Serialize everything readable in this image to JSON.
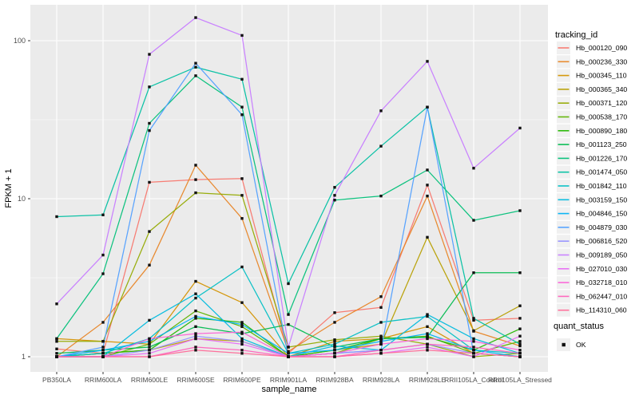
{
  "figure": {
    "panel_bg": "#EBEBEB",
    "grid_color": "#FFFFFF",
    "tick_text_color": "#4D4D4D",
    "title_text_color": "#000000",
    "point_color": "#111111"
  },
  "axes": {
    "x_title": "sample_name",
    "y_title": "FPKM + 1",
    "y_scale": "log10",
    "y_major_ticks": [
      {
        "label": "1",
        "value": 1
      },
      {
        "label": "10",
        "value": 10
      },
      {
        "label": "100",
        "value": 100
      }
    ],
    "y_minor_values": [
      3.1623,
      31.623
    ]
  },
  "legend": {
    "tracking_title": "tracking_id",
    "quant_title": "quant_status",
    "quant_items": [
      {
        "label": "OK",
        "marker": "black-square"
      }
    ]
  },
  "chart_data": {
    "type": "line",
    "title": "",
    "xlabel": "sample_name",
    "ylabel": "FPKM + 1",
    "y_scale": "log10",
    "ylim": [
      0.8,
      170
    ],
    "grid": true,
    "legend_position": "right",
    "point_marker": "black square (quant_status = OK)",
    "categories": [
      "PB350LA",
      "RRIM600LA",
      "RRIM600LE",
      "RRIM600SE",
      "RRIM600PE",
      "RRIM901LA",
      "RRIM928BA",
      "RRIM928LA",
      "RRIM928LE",
      "RRII105LA_Control",
      "RRII105LA_Stressed"
    ],
    "series": [
      {
        "name": "Hb_000120_090",
        "color": "#F8766D",
        "values": [
          1.12,
          1.05,
          12.7,
          13.2,
          13.4,
          1.05,
          1.9,
          2.05,
          12.2,
          1.7,
          1.75
        ]
      },
      {
        "name": "Hb_000236_330",
        "color": "#E88526",
        "values": [
          1.0,
          1.65,
          3.8,
          16.3,
          7.5,
          1.08,
          1.65,
          2.4,
          10.4,
          1.45,
          1.17
        ]
      },
      {
        "name": "Hb_000345_110",
        "color": "#D39200",
        "values": [
          1.3,
          1.25,
          1.2,
          3.0,
          2.2,
          1.0,
          1.25,
          1.3,
          1.55,
          1.05,
          1.0
        ]
      },
      {
        "name": "Hb_000365_340",
        "color": "#B79F00",
        "values": [
          1.0,
          1.05,
          1.1,
          1.3,
          1.25,
          1.0,
          1.1,
          1.2,
          5.7,
          1.46,
          2.1
        ]
      },
      {
        "name": "Hb_000371_120",
        "color": "#93AA00",
        "values": [
          1.25,
          1.25,
          6.2,
          10.9,
          10.5,
          1.15,
          1.28,
          1.35,
          1.2,
          1.0,
          1.05
        ]
      },
      {
        "name": "Hb_000538_170",
        "color": "#5EB300",
        "values": [
          1.0,
          1.0,
          1.2,
          1.95,
          1.55,
          1.0,
          1.05,
          1.3,
          1.35,
          1.05,
          1.25
        ]
      },
      {
        "name": "Hb_000890_180",
        "color": "#24B700",
        "values": [
          1.0,
          1.05,
          1.1,
          1.75,
          1.65,
          1.0,
          1.1,
          1.3,
          1.33,
          1.1,
          1.5
        ]
      },
      {
        "name": "Hb_001123_250",
        "color": "#00BB4E",
        "values": [
          1.05,
          1.1,
          1.15,
          1.55,
          1.4,
          1.6,
          1.15,
          1.3,
          1.33,
          3.4,
          3.4
        ]
      },
      {
        "name": "Hb_001226_170",
        "color": "#00C078",
        "values": [
          1.3,
          3.35,
          30.0,
          60.0,
          38.0,
          1.85,
          9.8,
          10.4,
          15.2,
          7.3,
          8.4
        ]
      },
      {
        "name": "Hb_001474_050",
        "color": "#00C0A2",
        "values": [
          7.7,
          7.9,
          51.0,
          68.0,
          57.0,
          2.9,
          11.8,
          21.5,
          38.0,
          1.75,
          1.2
        ]
      },
      {
        "name": "Hb_001842_110",
        "color": "#00BFC4",
        "values": [
          1.0,
          1.05,
          1.3,
          2.35,
          3.7,
          1.05,
          1.2,
          1.65,
          1.8,
          1.1,
          1.05
        ]
      },
      {
        "name": "Hb_003159_150",
        "color": "#00BADE",
        "values": [
          1.0,
          1.0,
          1.7,
          2.5,
          1.3,
          1.0,
          1.17,
          1.1,
          1.85,
          1.3,
          1.05
        ]
      },
      {
        "name": "Hb_004846_150",
        "color": "#00B2F3",
        "values": [
          1.0,
          1.1,
          1.25,
          1.8,
          1.6,
          1.05,
          1.1,
          1.25,
          1.4,
          1.1,
          1.0
        ]
      },
      {
        "name": "Hb_004879_030",
        "color": "#509FFF",
        "values": [
          1.0,
          1.15,
          27.0,
          72.0,
          34.0,
          1.0,
          1.05,
          1.1,
          38.0,
          1.05,
          1.0
        ]
      },
      {
        "name": "Hb_006816_520",
        "color": "#9590FF",
        "values": [
          1.0,
          1.0,
          1.1,
          1.35,
          1.25,
          1.0,
          1.05,
          1.1,
          1.2,
          1.05,
          1.0
        ]
      },
      {
        "name": "Hb_009189_050",
        "color": "#C77CFF",
        "values": [
          2.16,
          4.4,
          82.0,
          140.0,
          108.0,
          1.15,
          10.5,
          36.0,
          74.0,
          15.6,
          28.0
        ]
      },
      {
        "name": "Hb_027010_030",
        "color": "#E76BF3",
        "values": [
          1.0,
          1.0,
          1.05,
          1.3,
          1.2,
          1.0,
          1.0,
          1.05,
          1.15,
          1.0,
          1.35
        ]
      },
      {
        "name": "Hb_032718_010",
        "color": "#FB61D7",
        "values": [
          1.0,
          1.0,
          1.3,
          1.4,
          1.43,
          1.0,
          1.05,
          1.2,
          1.3,
          1.25,
          1.1
        ]
      },
      {
        "name": "Hb_062447_010",
        "color": "#FF62BC",
        "values": [
          1.0,
          1.0,
          1.0,
          1.15,
          1.1,
          1.0,
          1.0,
          1.1,
          1.2,
          1.15,
          1.05
        ]
      },
      {
        "name": "Hb_114310_060",
        "color": "#FF6A98",
        "values": [
          1.0,
          1.0,
          1.0,
          1.1,
          1.05,
          1.0,
          1.0,
          1.05,
          1.1,
          1.05,
          1.0
        ]
      }
    ]
  }
}
